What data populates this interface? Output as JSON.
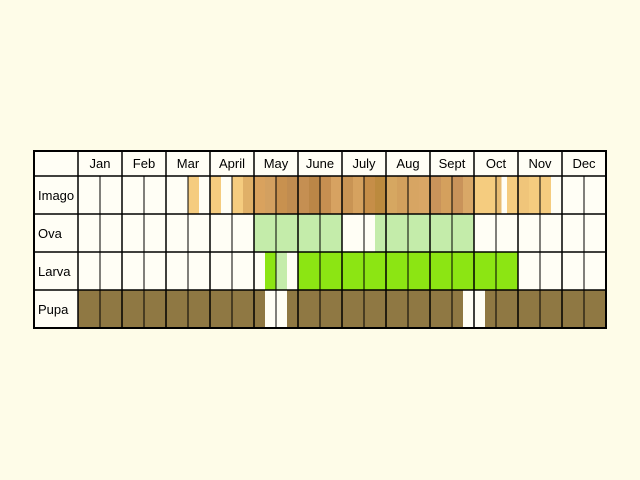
{
  "chart_data": {
    "type": "heatmap",
    "months": [
      "Jan",
      "Feb",
      "Mar",
      "April",
      "May",
      "June",
      "July",
      "Aug",
      "Sept",
      "Oct",
      "Nov",
      "Dec"
    ],
    "stages": [
      {
        "name": "Imago",
        "segments": [
          {
            "start": 2.5,
            "end": 2.75,
            "color": "#f5cc7f"
          },
          {
            "start": 3.0,
            "end": 3.25,
            "color": "#f5cc7f"
          },
          {
            "start": 3.5,
            "end": 3.75,
            "color": "#f5cc7f"
          },
          {
            "start": 3.75,
            "end": 4.0,
            "color": "#e0b068"
          },
          {
            "start": 4.0,
            "end": 4.25,
            "color": "#d9a25e"
          },
          {
            "start": 4.25,
            "end": 4.5,
            "color": "#d3a060"
          },
          {
            "start": 4.5,
            "end": 4.75,
            "color": "#c8914f"
          },
          {
            "start": 4.75,
            "end": 5.0,
            "color": "#c08c50"
          },
          {
            "start": 5.0,
            "end": 5.25,
            "color": "#c58f52"
          },
          {
            "start": 5.25,
            "end": 5.5,
            "color": "#bb8647"
          },
          {
            "start": 5.5,
            "end": 5.75,
            "color": "#c68f51"
          },
          {
            "start": 5.75,
            "end": 6.0,
            "color": "#d7a261"
          },
          {
            "start": 6.0,
            "end": 6.25,
            "color": "#c99454"
          },
          {
            "start": 6.25,
            "end": 6.5,
            "color": "#d6a25f"
          },
          {
            "start": 6.5,
            "end": 6.75,
            "color": "#c68e48"
          },
          {
            "start": 6.75,
            "end": 7.0,
            "color": "#bc8a3e"
          },
          {
            "start": 7.0,
            "end": 7.25,
            "color": "#d6a761"
          },
          {
            "start": 7.25,
            "end": 7.5,
            "color": "#d2a05d"
          },
          {
            "start": 7.5,
            "end": 7.75,
            "color": "#d7a563"
          },
          {
            "start": 7.75,
            "end": 8.0,
            "color": "#d9a665"
          },
          {
            "start": 8.0,
            "end": 8.25,
            "color": "#c9935a"
          },
          {
            "start": 8.25,
            "end": 8.5,
            "color": "#d4a05d"
          },
          {
            "start": 8.5,
            "end": 8.75,
            "color": "#c9935a"
          },
          {
            "start": 8.75,
            "end": 9.0,
            "color": "#d9a867"
          },
          {
            "start": 9.0,
            "end": 9.25,
            "color": "#f5cc7f"
          },
          {
            "start": 9.25,
            "end": 9.5,
            "color": "#f5cc7f"
          },
          {
            "start": 9.5,
            "end": 9.625,
            "color": "#e8bc72"
          },
          {
            "start": 9.75,
            "end": 10.0,
            "color": "#f5cc7f"
          },
          {
            "start": 10.0,
            "end": 10.25,
            "color": "#f0c57a"
          },
          {
            "start": 10.25,
            "end": 10.5,
            "color": "#f5cc7f"
          },
          {
            "start": 10.5,
            "end": 10.75,
            "color": "#f5cc7f"
          }
        ]
      },
      {
        "name": "Ova",
        "segments": [
          {
            "start": 4.0,
            "end": 6.0,
            "color": "#c4ecaa"
          },
          {
            "start": 6.75,
            "end": 9.0,
            "color": "#c4ecaa"
          }
        ]
      },
      {
        "name": "Larva",
        "segments": [
          {
            "start": 4.25,
            "end": 4.5,
            "color": "#8ce513"
          },
          {
            "start": 4.5,
            "end": 4.75,
            "color": "#c4ecaa"
          },
          {
            "start": 5.0,
            "end": 10.0,
            "color": "#8ce513"
          }
        ]
      },
      {
        "name": "Pupa",
        "segments": [
          {
            "start": 0.0,
            "end": 4.25,
            "color": "#8f7843"
          },
          {
            "start": 4.75,
            "end": 8.75,
            "color": "#8f7843"
          },
          {
            "start": 9.25,
            "end": 12.0,
            "color": "#8f7843"
          }
        ]
      }
    ]
  }
}
